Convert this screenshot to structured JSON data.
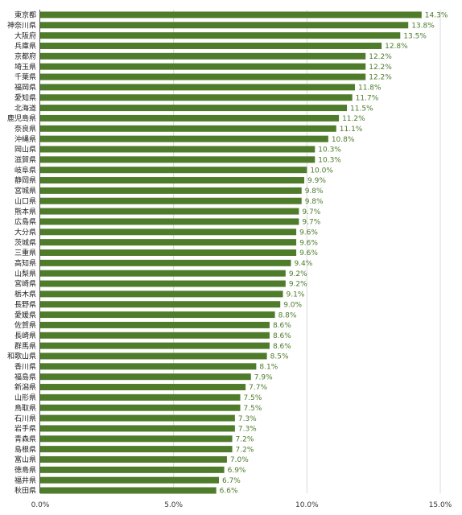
{
  "chart_data": {
    "type": "bar",
    "orientation": "horizontal",
    "title": "",
    "xlabel": "",
    "ylabel": "",
    "xlim": [
      0,
      15
    ],
    "grid": true,
    "bar_color": "#4f7c2a",
    "label_color": "#4b7a2a",
    "ticks": [
      "0.0%",
      "5.0%",
      "10.0%",
      "15.0%"
    ],
    "tick_values": [
      0,
      5,
      10,
      15
    ],
    "categories": [
      "東京都",
      "神奈川県",
      "大阪府",
      "兵庫県",
      "京都府",
      "埼玉県",
      "千葉県",
      "福岡県",
      "愛知県",
      "北海道",
      "鹿児島県",
      "奈良県",
      "沖縄県",
      "岡山県",
      "滋賀県",
      "岐阜県",
      "静岡県",
      "宮城県",
      "山口県",
      "熊本県",
      "広島県",
      "大分県",
      "茨城県",
      "三重県",
      "高知県",
      "山梨県",
      "宮崎県",
      "栃木県",
      "長野県",
      "愛媛県",
      "佐賀県",
      "長崎県",
      "群馬県",
      "和歌山県",
      "香川県",
      "福島県",
      "新潟県",
      "山形県",
      "鳥取県",
      "石川県",
      "岩手県",
      "青森県",
      "島根県",
      "富山県",
      "徳島県",
      "福井県",
      "秋田県"
    ],
    "values": [
      14.3,
      13.8,
      13.5,
      12.8,
      12.2,
      12.2,
      12.2,
      11.8,
      11.7,
      11.5,
      11.2,
      11.1,
      10.8,
      10.3,
      10.3,
      10.0,
      9.9,
      9.8,
      9.8,
      9.7,
      9.7,
      9.6,
      9.6,
      9.6,
      9.4,
      9.2,
      9.2,
      9.1,
      9.0,
      8.8,
      8.6,
      8.6,
      8.6,
      8.5,
      8.1,
      7.9,
      7.7,
      7.5,
      7.5,
      7.3,
      7.3,
      7.2,
      7.2,
      7.0,
      6.9,
      6.7,
      6.6
    ],
    "labels": [
      "14.3%",
      "13.8%",
      "13.5%",
      "12.8%",
      "12.2%",
      "12.2%",
      "12.2%",
      "11.8%",
      "11.7%",
      "11.5%",
      "11.2%",
      "11.1%",
      "10.8%",
      "10.3%",
      "10.3%",
      "10.0%",
      "9.9%",
      "9.8%",
      "9.8%",
      "9.7%",
      "9.7%",
      "9.6%",
      "9.6%",
      "9.6%",
      "9.4%",
      "9.2%",
      "9.2%",
      "9.1%",
      "9.0%",
      "8.8%",
      "8.6%",
      "8.6%",
      "8.6%",
      "8.5%",
      "8.1%",
      "7.9%",
      "7.7%",
      "7.5%",
      "7.5%",
      "7.3%",
      "7.3%",
      "7.2%",
      "7.2%",
      "7.0%",
      "6.9%",
      "6.7%",
      "6.6%"
    ]
  }
}
